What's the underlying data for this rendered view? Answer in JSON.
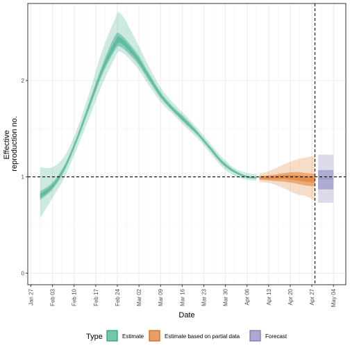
{
  "chart_data": {
    "type": "area",
    "xlabel": "Date",
    "ylabel_lines": [
      "Effective",
      "reproduction no."
    ],
    "y_ticks": [
      0,
      1,
      2
    ],
    "ylim": [
      -0.12,
      2.8
    ],
    "x_ticks": [
      "Jan 27",
      "Feb 03",
      "Feb 10",
      "Feb 17",
      "Feb 24",
      "Mar 02",
      "Mar 09",
      "Mar 16",
      "Mar 23",
      "Mar 30",
      "Apr 06",
      "Apr 13",
      "Apr 20",
      "Apr 27",
      "May 04"
    ],
    "xlim": [
      "2020-01-26",
      "2020-05-08"
    ],
    "reference_line_y": 1,
    "reference_line_x": "2020-04-28",
    "grid": true,
    "colors": {
      "estimate": "#1b9e77",
      "partial": "#d95f02",
      "forecast": "#7570b3"
    },
    "legend": {
      "title": "Type",
      "position": "bottom",
      "entries": [
        "Estimate",
        "Estimate based on partial data",
        "Forecast"
      ]
    },
    "series": [
      {
        "name": "Estimate",
        "x": [
          "2020-01-30",
          "2020-02-03",
          "2020-02-07",
          "2020-02-11",
          "2020-02-15",
          "2020-02-19",
          "2020-02-23",
          "2020-02-25",
          "2020-03-01",
          "2020-03-05",
          "2020-03-09",
          "2020-03-13",
          "2020-03-17",
          "2020-03-21",
          "2020-03-25",
          "2020-03-29",
          "2020-04-02",
          "2020-04-06",
          "2020-04-09"
        ],
        "median": [
          0.8,
          0.9,
          1.1,
          1.4,
          1.75,
          2.1,
          2.35,
          2.42,
          2.25,
          2.05,
          1.85,
          1.7,
          1.58,
          1.45,
          1.3,
          1.15,
          1.05,
          1.0,
          0.99
        ],
        "lower_50": [
          0.76,
          0.87,
          1.07,
          1.37,
          1.71,
          2.05,
          2.3,
          2.35,
          2.2,
          2.01,
          1.82,
          1.68,
          1.55,
          1.43,
          1.28,
          1.13,
          1.04,
          0.99,
          0.98
        ],
        "upper_50": [
          0.85,
          0.94,
          1.13,
          1.43,
          1.79,
          2.15,
          2.45,
          2.48,
          2.3,
          2.09,
          1.88,
          1.73,
          1.61,
          1.47,
          1.32,
          1.17,
          1.07,
          1.01,
          1.0
        ],
        "lower_90": [
          0.57,
          0.78,
          1.0,
          1.3,
          1.62,
          1.95,
          2.22,
          2.3,
          2.15,
          1.96,
          1.78,
          1.65,
          1.52,
          1.4,
          1.25,
          1.1,
          1.01,
          0.97,
          0.96
        ],
        "upper_90": [
          1.1,
          1.1,
          1.22,
          1.5,
          1.88,
          2.3,
          2.62,
          2.7,
          2.42,
          2.16,
          1.93,
          1.77,
          1.64,
          1.5,
          1.35,
          1.2,
          1.09,
          1.04,
          1.03
        ]
      },
      {
        "name": "Estimate based on partial data",
        "x": [
          "2020-04-10",
          "2020-04-14",
          "2020-04-18",
          "2020-04-22",
          "2020-04-25",
          "2020-04-28"
        ],
        "median": [
          0.99,
          0.99,
          1.0,
          0.99,
          0.98,
          0.97
        ],
        "lower_50": [
          0.97,
          0.96,
          0.95,
          0.93,
          0.91,
          0.9
        ],
        "upper_50": [
          1.01,
          1.02,
          1.04,
          1.05,
          1.04,
          1.03
        ],
        "lower_90": [
          0.95,
          0.93,
          0.88,
          0.82,
          0.8,
          0.75
        ],
        "upper_90": [
          1.03,
          1.07,
          1.13,
          1.18,
          1.2,
          1.22
        ]
      },
      {
        "name": "Forecast",
        "x": [
          "2020-04-29",
          "2020-05-04"
        ],
        "median": [
          0.98,
          0.98
        ],
        "lower_50": [
          0.87,
          0.87
        ],
        "upper_50": [
          1.07,
          1.07
        ],
        "lower_90": [
          0.73,
          0.73
        ],
        "upper_90": [
          1.23,
          1.23
        ]
      }
    ]
  }
}
